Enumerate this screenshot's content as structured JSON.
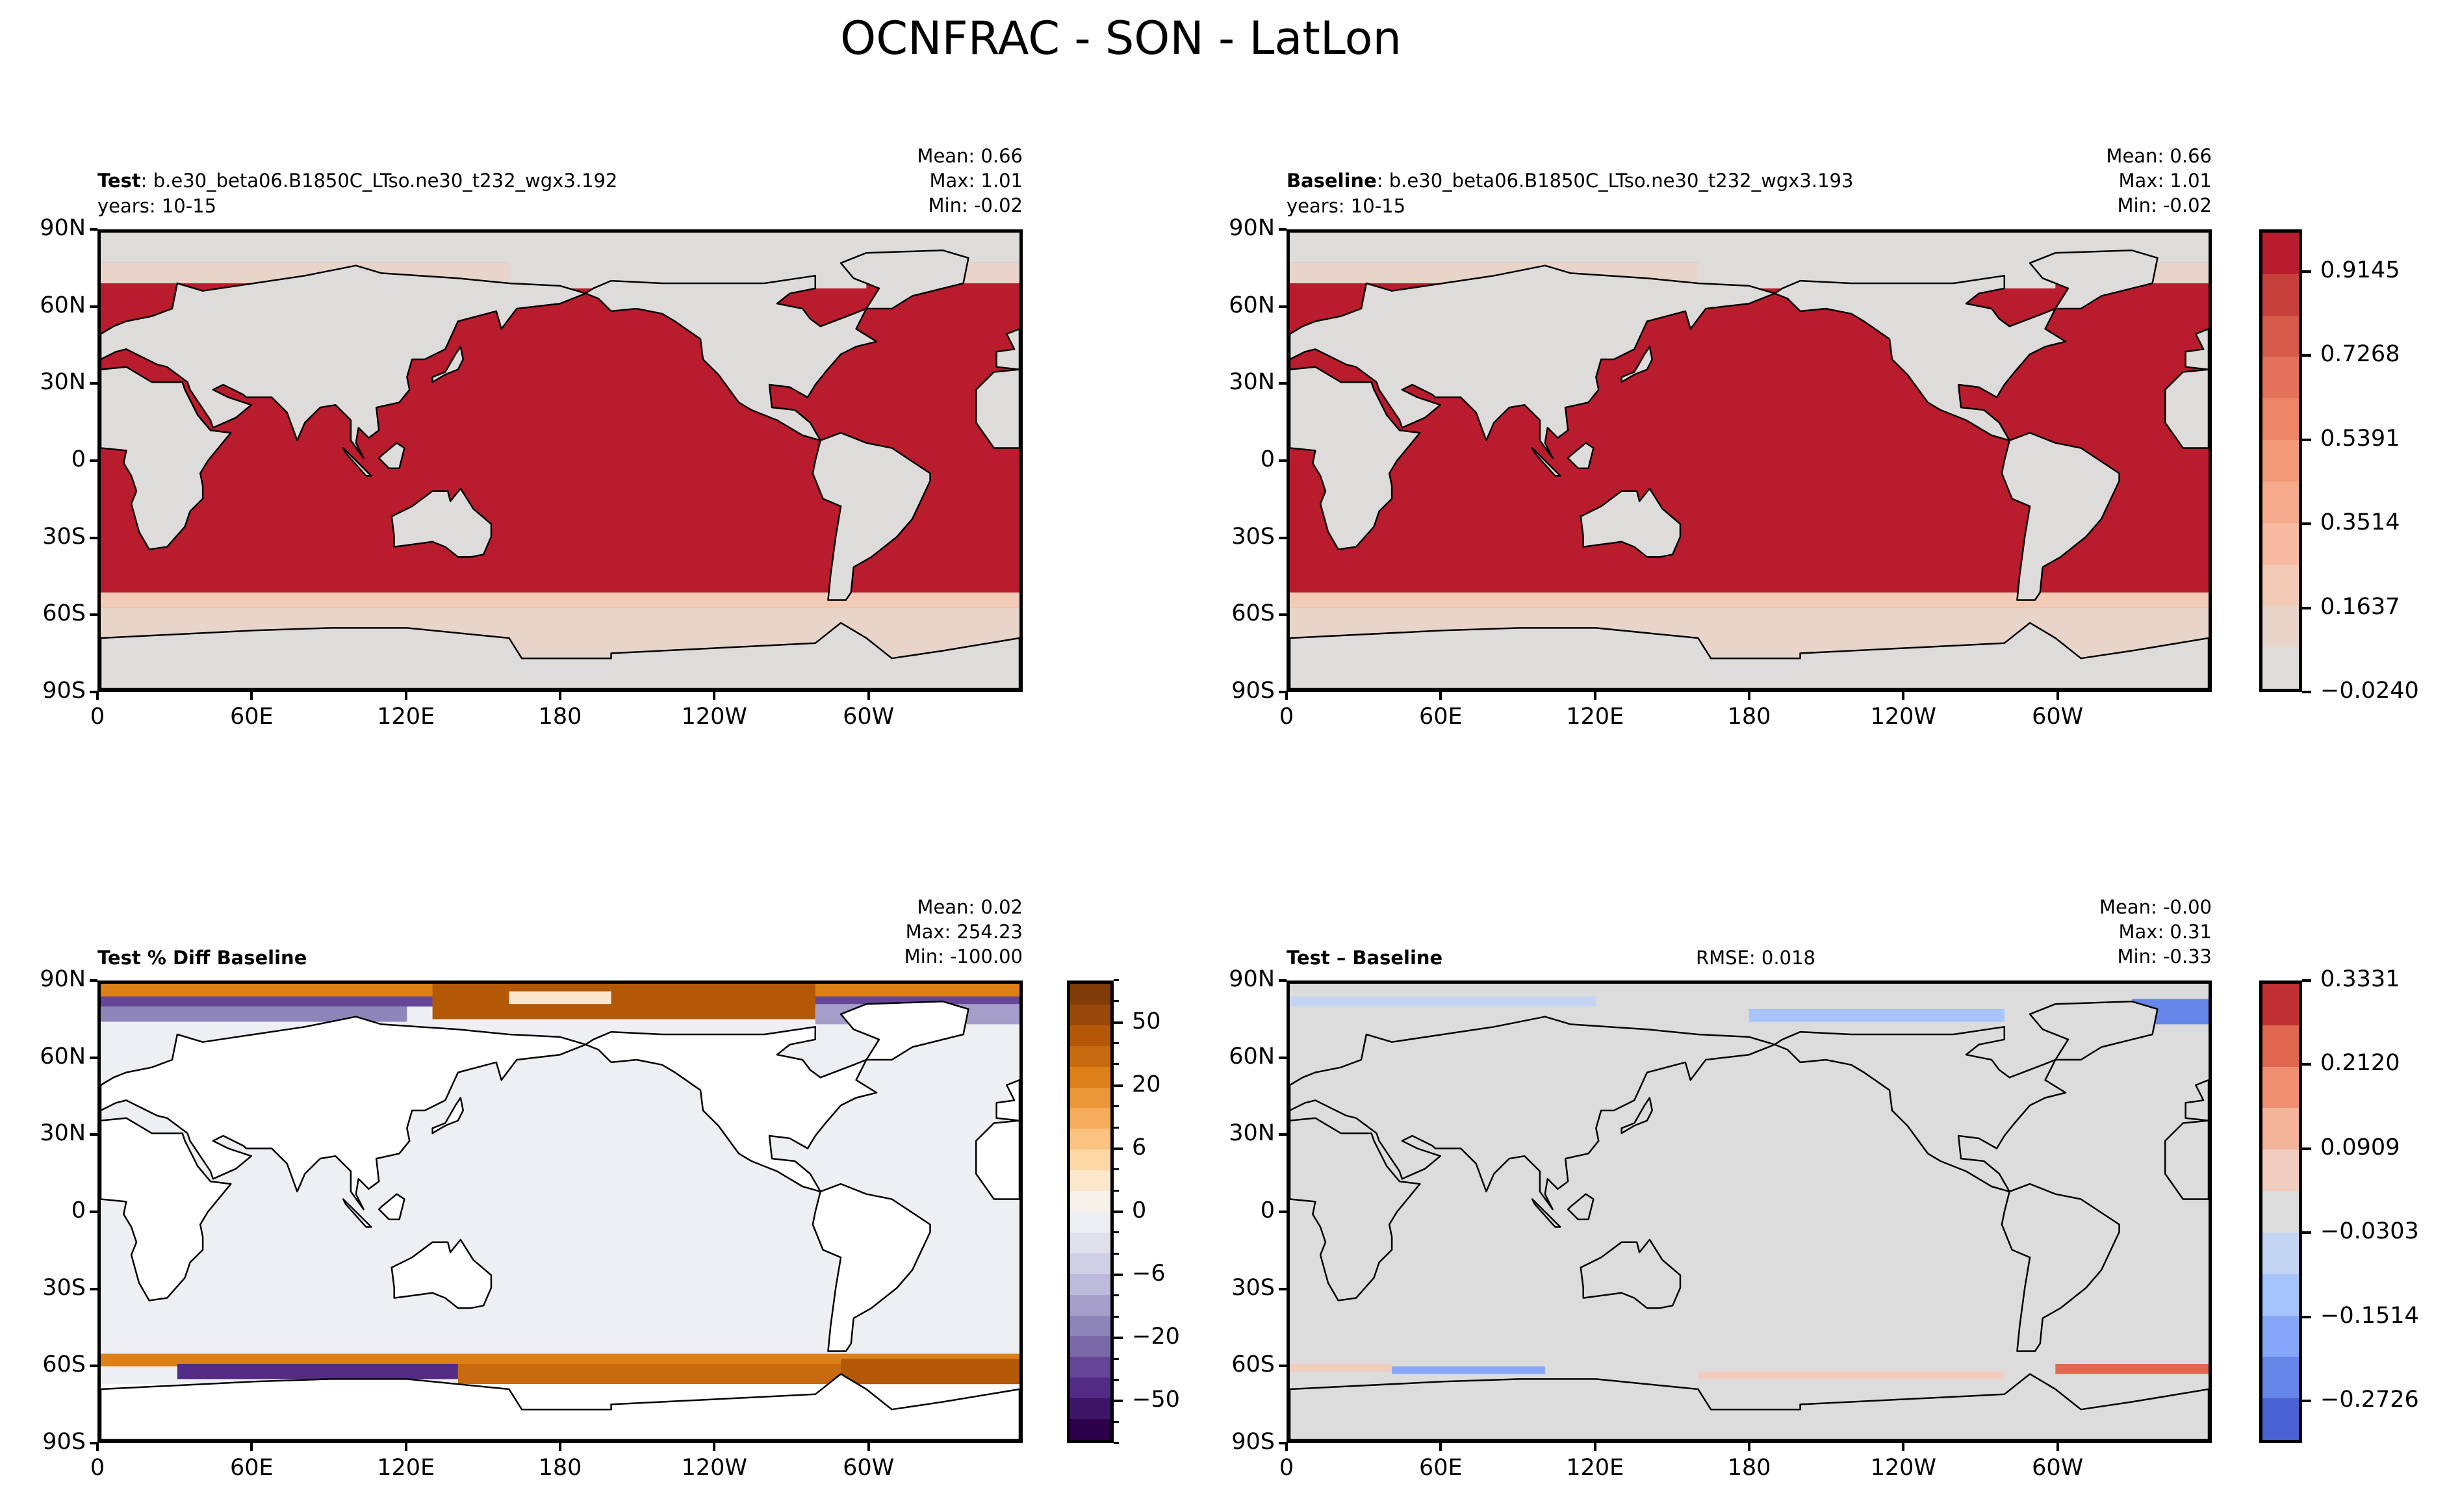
{
  "chart_data": {
    "type": "heatmap",
    "title": "OCNFRAC - SON - LatLon",
    "lat_ticks": [
      "90N",
      "60N",
      "30N",
      "0",
      "30S",
      "60S",
      "90S"
    ],
    "lon_ticks": [
      "0",
      "60E",
      "120E",
      "180",
      "120W",
      "60W"
    ],
    "panels": [
      {
        "id": "test",
        "title_bold": "Test",
        "title_rest": ": b.e30_beta06.B1850C_LTso.ne30_t232_wgx3.192",
        "years": "years: 10-15",
        "stats": [
          "Mean:  0.66",
          "Max:  1.01",
          "Min: -0.02"
        ]
      },
      {
        "id": "baseline",
        "title_bold": "Baseline",
        "title_rest": ": b.e30_beta06.B1850C_LTso.ne30_t232_wgx3.193",
        "years": "years: 10-15",
        "stats": [
          "Mean:  0.66",
          "Max:  1.01",
          "Min: -0.02"
        ]
      },
      {
        "id": "pct-diff",
        "title_bold": "Test % Diff Baseline",
        "stats": [
          "Mean:  0.02",
          "Max: 254.23",
          "Min: -100.00"
        ]
      },
      {
        "id": "diff",
        "title_bold": "Test – Baseline",
        "rmse": "RMSE: 0.018",
        "stats": [
          "Mean: -0.00",
          "Max:  0.31",
          "Min: -0.33"
        ]
      }
    ],
    "colorbars": [
      {
        "id": "field",
        "range": [
          -0.024,
          1.0085
        ],
        "colors_bottom_to_top": [
          "#dedcdb",
          "#e8d4c9",
          "#f2cbb7",
          "#f6bba1",
          "#f5aa8b",
          "#f29a77",
          "#eb8566",
          "#e2705a",
          "#d65a4a",
          "#c7403c",
          "#b91c2c"
        ],
        "tick_labels": [
          "−0.0240",
          "0.1637",
          "0.3514",
          "0.5391",
          "0.7268",
          "0.9145"
        ],
        "tick_band_index": [
          0,
          2,
          4,
          6,
          8,
          10
        ]
      },
      {
        "id": "pct-diff",
        "colors_top_to_bottom": [
          "#7f3b08",
          "#97480a",
          "#b35806",
          "#c86a10",
          "#dc8017",
          "#ea973a",
          "#f6ad5b",
          "#fcc27f",
          "#fdd8a6",
          "#fce7cc",
          "#f7f1ea",
          "#eeeff3",
          "#e0e0ec",
          "#cfcfe5",
          "#bcb9da",
          "#a59ecb",
          "#8e85ba",
          "#7a68a8",
          "#664696",
          "#512b84",
          "#3d1566",
          "#2d004b"
        ],
        "tick_labels": [
          "50",
          "20",
          "6",
          "0",
          "−6",
          "−20",
          "−50"
        ],
        "tick_band_index_from_top": [
          2,
          5,
          8,
          11,
          14,
          17,
          20
        ]
      },
      {
        "id": "diff",
        "range": [
          -0.3937,
          0.3331
        ],
        "colors_top_to_bottom": [
          "#c02f31",
          "#e0684f",
          "#f08f72",
          "#f4b49a",
          "#f0cdbf",
          "#dcdcdc",
          "#c3d5f2",
          "#a6c4fd",
          "#86a7f9",
          "#6687e9",
          "#4961d2"
        ],
        "tick_labels": [
          "0.3331",
          "0.2120",
          "0.0909",
          "−0.0303",
          "−0.1514",
          "−0.2726"
        ],
        "tick_band_index_from_top": [
          0,
          2,
          4,
          6,
          8,
          10
        ]
      }
    ]
  }
}
